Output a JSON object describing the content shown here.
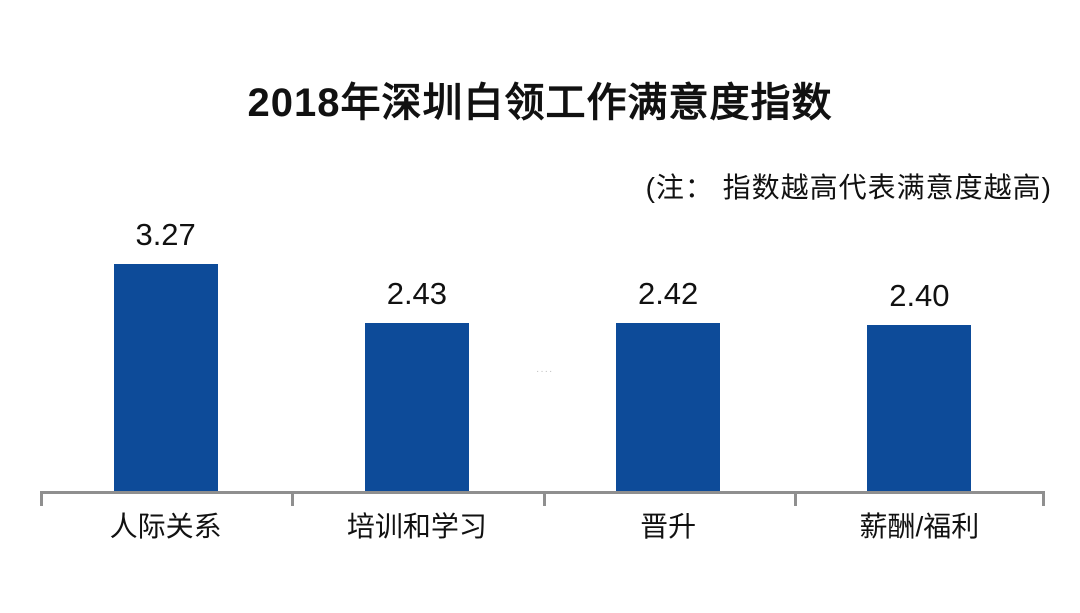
{
  "chart_data": {
    "type": "bar",
    "title": "2018年深圳白领工作满意度指数",
    "note": "(注： 指数越高代表满意度越高)",
    "categories": [
      "人际关系",
      "培训和学习",
      "晋升",
      "薪酬/福利"
    ],
    "values": [
      3.27,
      2.43,
      2.42,
      2.4
    ],
    "value_labels": [
      "3.27",
      "2.43",
      "2.42",
      "2.40"
    ],
    "xlabel": "",
    "ylabel": "",
    "ylim": [
      0,
      4.2
    ],
    "grid": false,
    "legend": false,
    "bar_color": "#0d4b99",
    "axis_color": "#8f8f8f",
    "text_color": "#111111",
    "background_color": "#ffffff"
  },
  "watermark": "····"
}
